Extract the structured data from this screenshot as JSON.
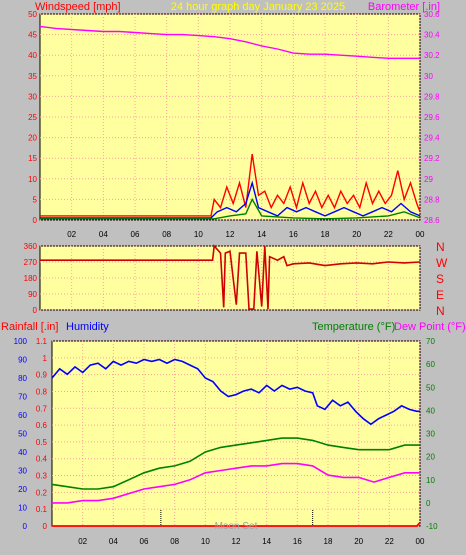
{
  "header": {
    "left": "Windspeed [mph]",
    "center": "24 hour graph day   January 23 2025",
    "right": "Barometer [.in]"
  },
  "colors": {
    "background": "#c0c0c0",
    "plot_bg": "#ffffa0",
    "grid": "#ffa0a0",
    "red": "#ff0000",
    "darkred": "#d00000",
    "blue": "#0000ff",
    "green": "#008000",
    "magenta": "#ff00ff",
    "title_yellow": "#ffff00"
  },
  "chart_data": [
    {
      "id": "wind-baro",
      "type": "line",
      "title": "24 hour graph day   January 23 2025",
      "ylabel": "Windspeed [mph]",
      "y2label": "Barometer [.in]",
      "x_ticks": [
        "02",
        "04",
        "06",
        "08",
        "10",
        "12",
        "14",
        "16",
        "18",
        "20",
        "22",
        "00"
      ],
      "x_range": [
        0,
        24
      ],
      "ylim": [
        0,
        50
      ],
      "y_ticks": [
        0,
        5,
        10,
        15,
        20,
        25,
        30,
        35,
        40,
        45,
        50
      ],
      "y2lim": [
        28.6,
        30.6
      ],
      "y2_ticks": [
        "28.6",
        "28.8",
        "29",
        "29.2",
        "29.4",
        "29.6",
        "29.8",
        "30",
        "30.2",
        "30.4",
        "30.6"
      ],
      "series": [
        {
          "role": "barometer",
          "axis": "right",
          "color": "#ff00ff",
          "points": [
            [
              0,
              30.48
            ],
            [
              1,
              30.46
            ],
            [
              2,
              30.45
            ],
            [
              3,
              30.44
            ],
            [
              4,
              30.43
            ],
            [
              5,
              30.43
            ],
            [
              6,
              30.42
            ],
            [
              7,
              30.41
            ],
            [
              8,
              30.4
            ],
            [
              9,
              30.4
            ],
            [
              10,
              30.39
            ],
            [
              11,
              30.38
            ],
            [
              12,
              30.36
            ],
            [
              13,
              30.33
            ],
            [
              14,
              30.29
            ],
            [
              15,
              30.26
            ],
            [
              16,
              30.22
            ],
            [
              17,
              30.21
            ],
            [
              18,
              30.21
            ],
            [
              19,
              30.2
            ],
            [
              20,
              30.19
            ],
            [
              21,
              30.18
            ],
            [
              22,
              30.17
            ],
            [
              23,
              30.17
            ],
            [
              24,
              30.17
            ]
          ]
        },
        {
          "role": "wind-gust",
          "axis": "left",
          "color": "#ff0000",
          "points": [
            [
              0,
              1
            ],
            [
              10.8,
              1
            ],
            [
              11,
              5
            ],
            [
              11.4,
              3
            ],
            [
              11.8,
              8
            ],
            [
              12.2,
              4
            ],
            [
              12.6,
              9
            ],
            [
              13.0,
              3
            ],
            [
              13.4,
              16
            ],
            [
              13.8,
              6
            ],
            [
              14.2,
              7
            ],
            [
              14.6,
              3
            ],
            [
              15.0,
              6
            ],
            [
              15.4,
              4
            ],
            [
              15.8,
              8
            ],
            [
              16.2,
              3
            ],
            [
              16.6,
              9
            ],
            [
              17.0,
              4
            ],
            [
              17.4,
              7
            ],
            [
              17.8,
              3
            ],
            [
              18.2,
              6
            ],
            [
              18.6,
              3
            ],
            [
              19.0,
              7
            ],
            [
              19.4,
              4
            ],
            [
              19.8,
              6
            ],
            [
              20.2,
              3
            ],
            [
              20.6,
              9
            ],
            [
              21.0,
              4
            ],
            [
              21.4,
              7
            ],
            [
              21.8,
              4
            ],
            [
              22.2,
              6
            ],
            [
              22.6,
              12
            ],
            [
              23.0,
              5
            ],
            [
              23.4,
              9
            ],
            [
              23.8,
              4
            ],
            [
              24,
              2
            ]
          ]
        },
        {
          "role": "wind-average",
          "axis": "left",
          "color": "#0000ff",
          "points": [
            [
              0,
              0.5
            ],
            [
              10.8,
              0.5
            ],
            [
              11.2,
              2
            ],
            [
              11.8,
              3
            ],
            [
              12.4,
              2
            ],
            [
              13.0,
              4
            ],
            [
              13.4,
              9
            ],
            [
              13.8,
              3
            ],
            [
              14.4,
              2
            ],
            [
              15.0,
              1
            ],
            [
              15.6,
              3
            ],
            [
              16.2,
              2
            ],
            [
              16.8,
              3
            ],
            [
              17.4,
              2
            ],
            [
              18.0,
              1
            ],
            [
              18.6,
              2
            ],
            [
              19.2,
              3
            ],
            [
              19.8,
              2
            ],
            [
              20.4,
              1
            ],
            [
              21.0,
              2
            ],
            [
              21.6,
              3
            ],
            [
              22.2,
              2
            ],
            [
              22.8,
              4
            ],
            [
              23.4,
              2
            ],
            [
              24,
              1
            ]
          ]
        },
        {
          "role": "wind-base",
          "axis": "left",
          "color": "#008000",
          "points": [
            [
              0,
              0.3
            ],
            [
              11,
              0.3
            ],
            [
              12,
              1
            ],
            [
              13,
              1.5
            ],
            [
              13.4,
              5
            ],
            [
              14,
              1
            ],
            [
              16,
              0.5
            ],
            [
              18,
              0.3
            ],
            [
              20,
              0.5
            ],
            [
              22,
              1
            ],
            [
              23,
              2
            ],
            [
              24,
              0.5
            ]
          ]
        }
      ]
    },
    {
      "id": "wind-direction",
      "type": "line",
      "x_ticks": [
        "02",
        "04",
        "06",
        "08",
        "10",
        "12",
        "14",
        "16",
        "18",
        "20",
        "22",
        "00"
      ],
      "x_range": [
        0,
        24
      ],
      "ylim": [
        0,
        360
      ],
      "y_ticks": [
        0,
        90,
        180,
        270,
        360
      ],
      "direction_labels": [
        "N",
        "W",
        "S",
        "E",
        "N"
      ],
      "series": [
        {
          "role": "direction",
          "color": "#d00000",
          "points": [
            [
              0,
              280
            ],
            [
              10.9,
              280
            ],
            [
              11.0,
              360
            ],
            [
              11.4,
              320
            ],
            [
              11.6,
              15
            ],
            [
              11.7,
              320
            ],
            [
              12.0,
              330
            ],
            [
              12.4,
              30
            ],
            [
              12.6,
              320
            ],
            [
              13.0,
              320
            ],
            [
              13.2,
              5
            ],
            [
              13.5,
              5
            ],
            [
              13.7,
              330
            ],
            [
              14.0,
              20
            ],
            [
              14.2,
              360
            ],
            [
              14.4,
              5
            ],
            [
              14.5,
              300
            ],
            [
              15.0,
              280
            ],
            [
              15.4,
              300
            ],
            [
              15.6,
              250
            ],
            [
              16.0,
              260
            ],
            [
              17.0,
              265
            ],
            [
              18.0,
              250
            ],
            [
              19.0,
              260
            ],
            [
              20.0,
              265
            ],
            [
              21.0,
              260
            ],
            [
              22.0,
              270
            ],
            [
              23.0,
              265
            ],
            [
              24,
              270
            ]
          ]
        }
      ]
    },
    {
      "id": "rain-hum-temp",
      "type": "line",
      "x_ticks": [
        "02",
        "04",
        "06",
        "08",
        "10",
        "12",
        "14",
        "16",
        "18",
        "20",
        "22",
        "00"
      ],
      "x_range": [
        0,
        24
      ],
      "legend_left": [
        "Rainfall [.in]",
        "Humidity"
      ],
      "legend_right": [
        "Temperature (°F)",
        "Dew Point (°F)"
      ],
      "rain_axis": {
        "lim": [
          0,
          1.1
        ],
        "ticks": [
          "0",
          "0.1",
          "0.2",
          "0.3",
          "0.4",
          "0.5",
          "0.6",
          "0.7",
          "0.8",
          "0.9",
          "1",
          "1.1"
        ]
      },
      "humidity_axis": {
        "lim": [
          0,
          100
        ],
        "ticks": [
          0,
          10,
          20,
          30,
          40,
          50,
          60,
          70,
          80,
          90,
          100
        ]
      },
      "temp_axis": {
        "lim": [
          -10,
          70
        ],
        "ticks": [
          -10,
          0,
          10,
          20,
          30,
          40,
          50,
          60,
          70
        ]
      },
      "markers": {
        "label": "Moon Set",
        "hours": [
          7.1,
          17.0
        ]
      },
      "series": [
        {
          "role": "humidity",
          "axis": "humidity",
          "color": "#0000ff",
          "points": [
            [
              0,
              80
            ],
            [
              0.5,
              85
            ],
            [
              1,
              82
            ],
            [
              1.5,
              86
            ],
            [
              2,
              83
            ],
            [
              2.5,
              87
            ],
            [
              3,
              88
            ],
            [
              3.5,
              85
            ],
            [
              4,
              89
            ],
            [
              4.5,
              87
            ],
            [
              5,
              89
            ],
            [
              5.5,
              88
            ],
            [
              6,
              90
            ],
            [
              6.5,
              89
            ],
            [
              7,
              90
            ],
            [
              7.5,
              88
            ],
            [
              8,
              90
            ],
            [
              8.5,
              89
            ],
            [
              9,
              87
            ],
            [
              9.5,
              85
            ],
            [
              10,
              80
            ],
            [
              10.5,
              78
            ],
            [
              11,
              73
            ],
            [
              11.5,
              70
            ],
            [
              12,
              71
            ],
            [
              12.5,
              73
            ],
            [
              13,
              74
            ],
            [
              13.5,
              72
            ],
            [
              14,
              76
            ],
            [
              14.5,
              73
            ],
            [
              15,
              76
            ],
            [
              15.5,
              74
            ],
            [
              16,
              75
            ],
            [
              16.5,
              73
            ],
            [
              17,
              72
            ],
            [
              17.3,
              65
            ],
            [
              17.8,
              63
            ],
            [
              18.3,
              68
            ],
            [
              18.8,
              65
            ],
            [
              19.3,
              67
            ],
            [
              19.8,
              62
            ],
            [
              20.3,
              58
            ],
            [
              20.8,
              55
            ],
            [
              21.3,
              58
            ],
            [
              21.8,
              60
            ],
            [
              22.3,
              62
            ],
            [
              22.8,
              65
            ],
            [
              23.3,
              63
            ],
            [
              23.8,
              62
            ],
            [
              24,
              62
            ]
          ]
        },
        {
          "role": "temperature",
          "axis": "temp",
          "color": "#008000",
          "points": [
            [
              0,
              8
            ],
            [
              1,
              7
            ],
            [
              2,
              6
            ],
            [
              3,
              6
            ],
            [
              4,
              7
            ],
            [
              5,
              10
            ],
            [
              6,
              13
            ],
            [
              7,
              15
            ],
            [
              8,
              16
            ],
            [
              9,
              18
            ],
            [
              10,
              22
            ],
            [
              11,
              24
            ],
            [
              12,
              25
            ],
            [
              13,
              26
            ],
            [
              14,
              27
            ],
            [
              15,
              28
            ],
            [
              16,
              28
            ],
            [
              17,
              27
            ],
            [
              18,
              25
            ],
            [
              19,
              24
            ],
            [
              20,
              23
            ],
            [
              21,
              23
            ],
            [
              22,
              23
            ],
            [
              23,
              25
            ],
            [
              24,
              25
            ]
          ]
        },
        {
          "role": "dewpoint",
          "axis": "temp",
          "color": "#ff00ff",
          "points": [
            [
              0,
              0
            ],
            [
              1,
              0
            ],
            [
              2,
              1
            ],
            [
              3,
              1
            ],
            [
              4,
              2
            ],
            [
              5,
              4
            ],
            [
              6,
              6
            ],
            [
              7,
              7
            ],
            [
              8,
              8
            ],
            [
              9,
              10
            ],
            [
              10,
              13
            ],
            [
              11,
              14
            ],
            [
              12,
              15
            ],
            [
              13,
              16
            ],
            [
              14,
              16
            ],
            [
              15,
              17
            ],
            [
              16,
              17
            ],
            [
              17,
              16
            ],
            [
              18,
              12
            ],
            [
              19,
              11
            ],
            [
              20,
              11
            ],
            [
              21,
              9
            ],
            [
              22,
              11
            ],
            [
              23,
              13
            ],
            [
              24,
              13
            ]
          ]
        },
        {
          "role": "rainfall",
          "axis": "rain",
          "color": "#ff0000",
          "points": [
            [
              0,
              0
            ],
            [
              23.8,
              0
            ],
            [
              24,
              0.02
            ]
          ]
        }
      ]
    }
  ]
}
